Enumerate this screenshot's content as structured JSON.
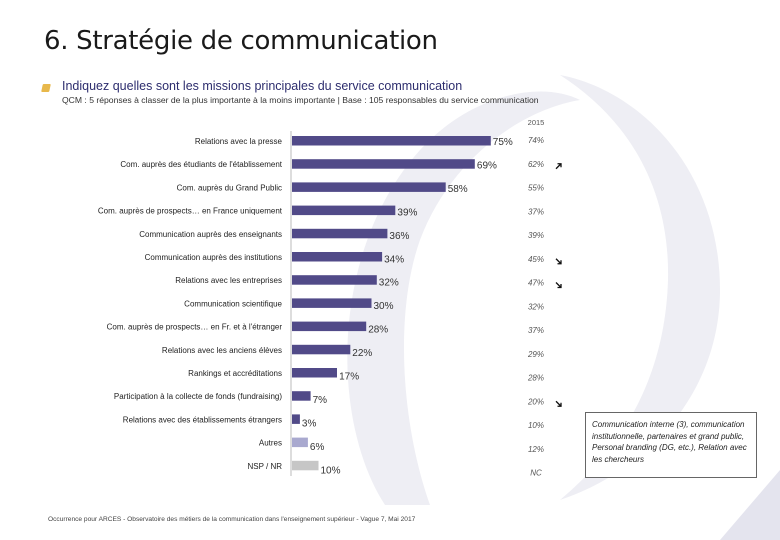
{
  "page": {
    "title": "6. Stratégie de communication",
    "question": "Indiquez quelles sont les missions principales du service communication",
    "subtitle": "QCM : 5 réponses à classer de la plus importante à la moins importante | Base : 105 responsables du service communication",
    "footer": "Occurrence pour ARCES - Observatoire des métiers de la communication dans l'enseignement supérieur - Vague 7, Mai 2017",
    "note": "Communication interne (3), communication institutionnelle, partenaires et grand public, Personal branding (DG, etc.), Relation avec les chercheurs"
  },
  "colors": {
    "bar_main": "#514a88",
    "bar_other": "#a9a9cf",
    "bar_nsp": "#c6c6c6",
    "decor": "#eeeef4"
  },
  "chart_data": {
    "type": "bar",
    "orientation": "horizontal",
    "categories": [
      "Relations avec la presse",
      "Com. auprès des étudiants de l'établissement",
      "Com. auprès du Grand Public",
      "Com. auprès de prospects… en France uniquement",
      "Communication auprès des enseignants",
      "Communication auprès des institutions",
      "Relations avec les entreprises",
      "Communication scientifique",
      "Com. auprès de prospects… en Fr. et à l'étranger",
      "Relations avec les anciens élèves",
      "Rankings et accréditations",
      "Participation à la collecte de fonds (fundraising)",
      "Relations avec des établissements étrangers",
      "Autres",
      "NSP / NR"
    ],
    "values": [
      75,
      69,
      58,
      39,
      36,
      34,
      32,
      30,
      28,
      22,
      17,
      7,
      3,
      6,
      10
    ],
    "value_labels": [
      "75%",
      "69%",
      "58%",
      "39%",
      "36%",
      "34%",
      "32%",
      "30%",
      "28%",
      "22%",
      "17%",
      "7%",
      "3%",
      "6%",
      "10%"
    ],
    "comparison_header": "2015",
    "comparison_labels": [
      "74%",
      "62%",
      "55%",
      "37%",
      "39%",
      "45%",
      "47%",
      "32%",
      "37%",
      "29%",
      "28%",
      "20%",
      "10%",
      "12%",
      "NC"
    ],
    "trends": [
      "",
      "up",
      "",
      "",
      "",
      "down",
      "down",
      "",
      "",
      "",
      "",
      "down",
      "",
      "",
      ""
    ],
    "xlim": [
      0,
      100
    ]
  }
}
